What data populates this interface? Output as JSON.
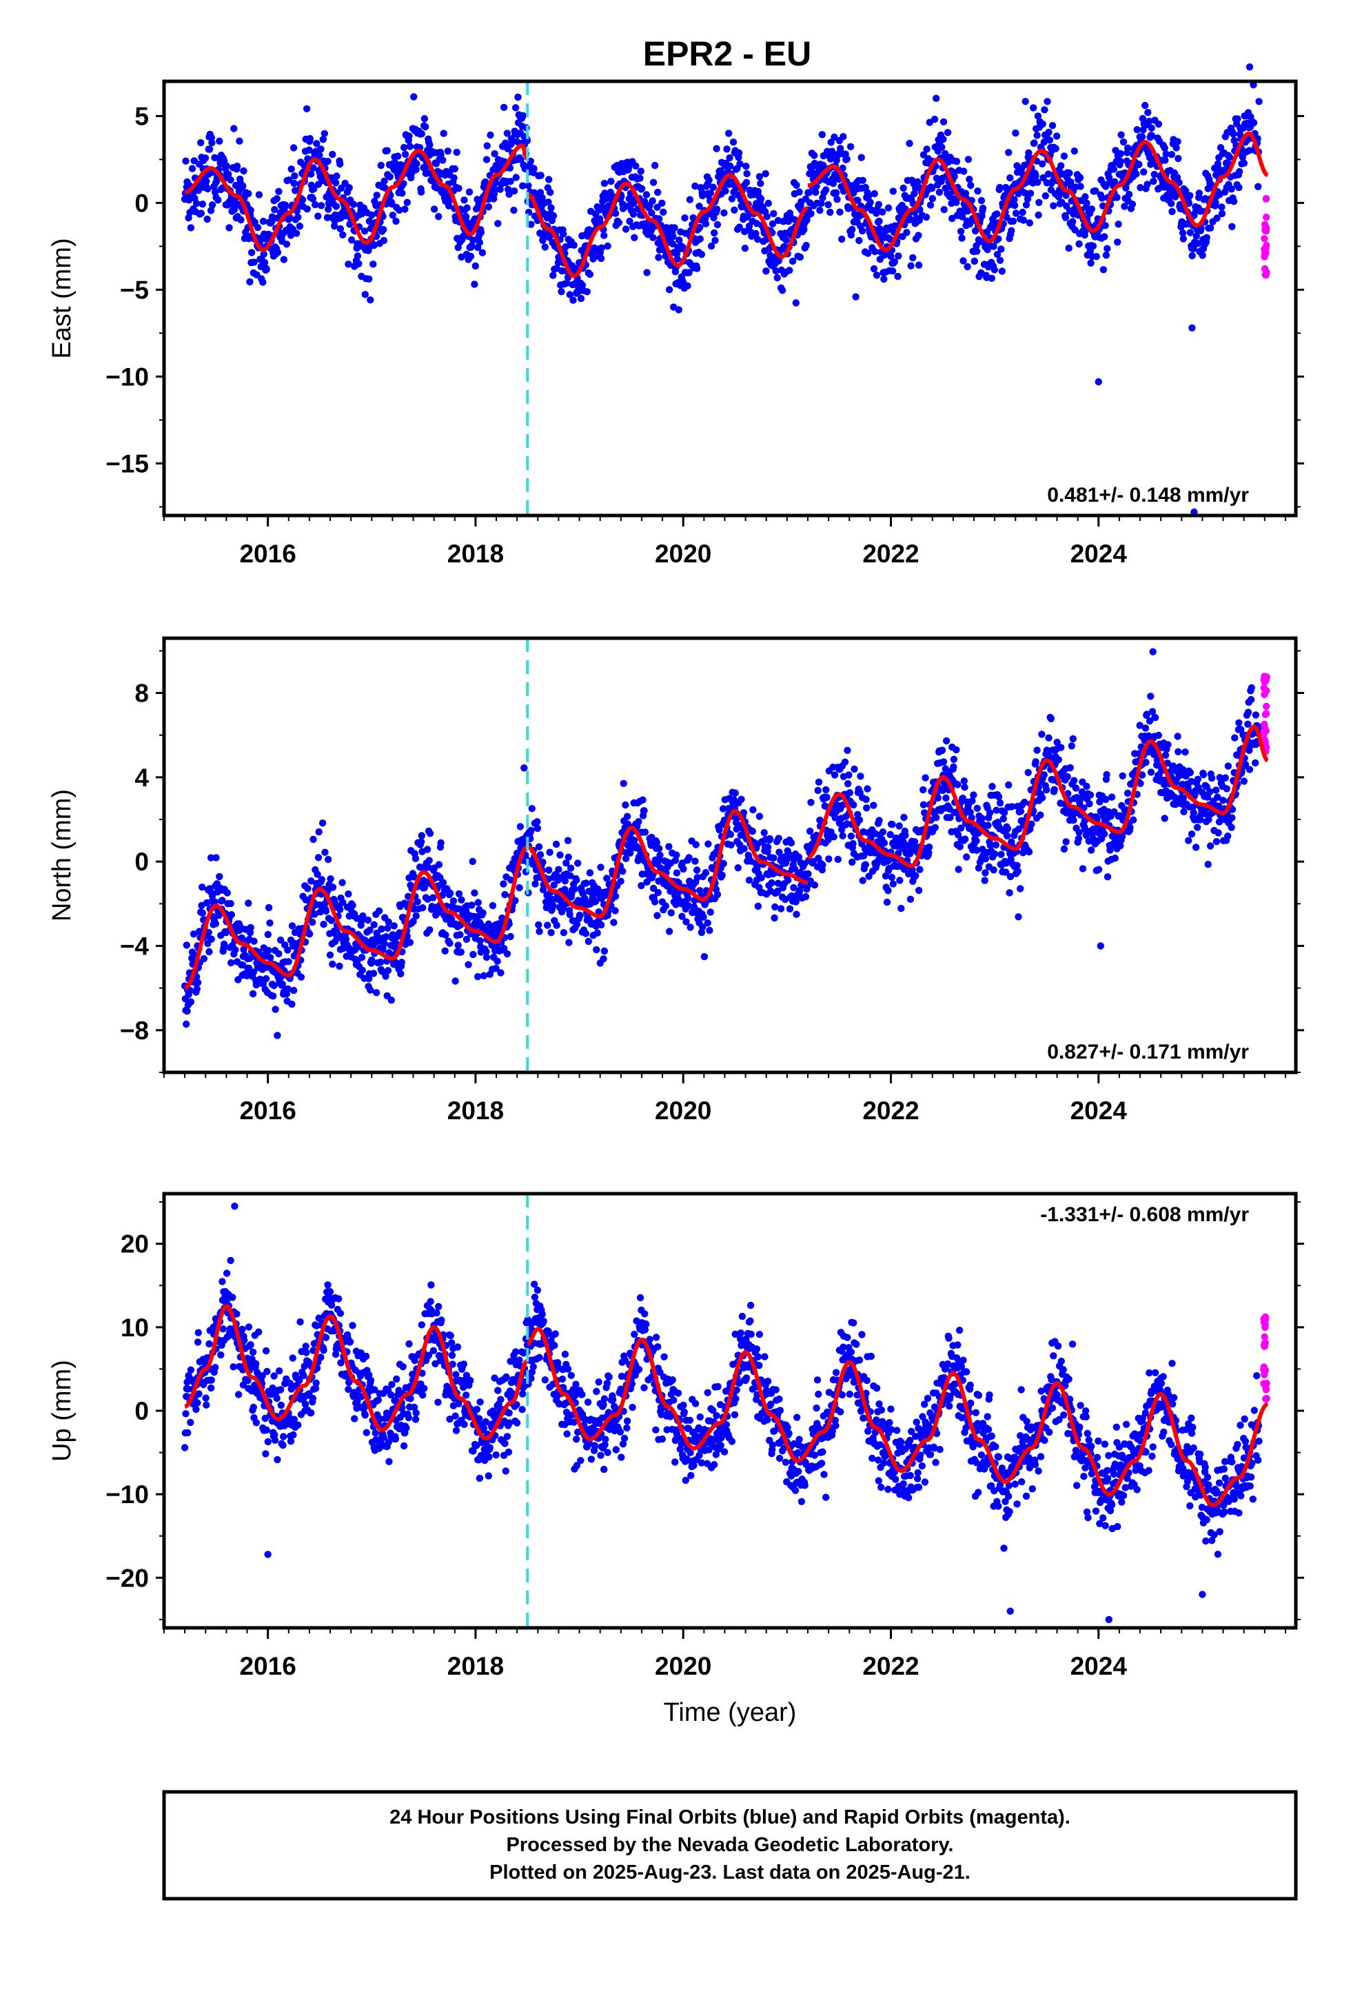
{
  "title": "EPR2 - EU",
  "colors": {
    "final": "#0000ff",
    "rapid": "#ff00ff",
    "model": "#ff0000",
    "event": "#33dddd"
  },
  "chart_data": [
    {
      "type": "scatter",
      "panel": "east",
      "ylabel": "East (mm)",
      "xlabel": "",
      "ylim": [
        -18,
        7
      ],
      "yticks": [
        5,
        0,
        -5,
        -10,
        -15
      ],
      "xlim": [
        2015.0,
        2025.9
      ],
      "xticks": [
        2016,
        2018,
        2020,
        2022,
        2024
      ],
      "rate_label": "0.481+/- 0.148 mm/yr",
      "rate_position": "bottom-right",
      "event_line_x": 2018.5,
      "data_start": 2015.2,
      "data_end": 2025.63,
      "rapid_start": 2025.55,
      "model_segments": [
        {
          "x": [
            2015.2,
            2015.45,
            2015.7,
            2015.95,
            2016.2,
            2016.45,
            2016.7,
            2016.95,
            2017.2,
            2017.45,
            2017.7,
            2017.95,
            2018.2,
            2018.45,
            2018.5
          ],
          "y": [
            0.6,
            2.0,
            0.4,
            -2.7,
            -0.6,
            2.5,
            0.2,
            -2.3,
            0.9,
            3.0,
            1.0,
            -1.8,
            1.6,
            3.3,
            2.5
          ]
        },
        {
          "x": [
            2018.5,
            2018.7,
            2018.95,
            2019.2,
            2019.45,
            2019.7,
            2019.95,
            2020.2,
            2020.45,
            2020.7,
            2020.95,
            2021.2
          ],
          "y": [
            0.5,
            -1.5,
            -4.2,
            -1.4,
            1.1,
            -1.0,
            -3.6,
            -0.5,
            1.6,
            -0.6,
            -3.1,
            -0.3
          ]
        },
        {
          "x": [
            2021.2,
            2021.45,
            2021.7,
            2021.95,
            2022.2,
            2022.45,
            2022.7,
            2022.95,
            2023.2,
            2023.45,
            2023.7,
            2023.95,
            2024.2,
            2024.45,
            2024.7,
            2024.95,
            2025.2,
            2025.45,
            2025.63
          ],
          "y": [
            1.0,
            2.1,
            -0.4,
            -2.7,
            -0.4,
            2.5,
            0.2,
            -2.2,
            0.8,
            3.0,
            0.7,
            -1.6,
            1.0,
            3.5,
            1.2,
            -1.3,
            1.5,
            4.0,
            1.6
          ]
        }
      ],
      "outliers": [
        [
          2020.0,
          -4.6
        ],
        [
          2024.0,
          -10.3
        ],
        [
          2024.9,
          -7.2
        ],
        [
          2024.92,
          -17.8
        ]
      ]
    },
    {
      "type": "scatter",
      "panel": "north",
      "ylabel": "North (mm)",
      "xlabel": "",
      "ylim": [
        -10,
        10.6
      ],
      "yticks": [
        8,
        4,
        0,
        -4,
        -8
      ],
      "xlim": [
        2015.0,
        2025.9
      ],
      "xticks": [
        2016,
        2018,
        2020,
        2022,
        2024
      ],
      "rate_label": "0.827+/- 0.171 mm/yr",
      "rate_position": "bottom-right",
      "event_line_x": 2018.5,
      "data_start": 2015.2,
      "data_end": 2025.63,
      "rapid_start": 2025.55,
      "model_segments": [
        {
          "x": [
            2015.2,
            2015.5,
            2015.75,
            2016.0,
            2016.2,
            2016.5,
            2016.75,
            2017.0,
            2017.2,
            2017.5,
            2017.75,
            2018.0,
            2018.2,
            2018.5
          ],
          "y": [
            -6.0,
            -2.1,
            -3.9,
            -4.8,
            -5.4,
            -1.3,
            -3.3,
            -4.2,
            -4.6,
            -0.5,
            -2.4,
            -3.3,
            -3.8,
            0.7
          ]
        },
        {
          "x": [
            2018.5,
            2018.75,
            2019.0,
            2019.2,
            2019.5,
            2019.75,
            2020.0,
            2020.2,
            2020.5,
            2020.75,
            2021.0,
            2021.2
          ],
          "y": [
            0.7,
            -1.4,
            -2.2,
            -2.6,
            1.6,
            -0.5,
            -1.3,
            -1.8,
            2.4,
            0.0,
            -0.6,
            -1.0
          ]
        },
        {
          "x": [
            2021.2,
            2021.5,
            2021.75,
            2022.0,
            2022.2,
            2022.5,
            2022.75,
            2023.0,
            2023.2,
            2023.5,
            2023.75,
            2024.0,
            2024.2,
            2024.5,
            2024.75,
            2025.0,
            2025.2,
            2025.5,
            2025.63
          ],
          "y": [
            0.2,
            3.2,
            1.0,
            0.3,
            -0.2,
            4.0,
            1.9,
            1.1,
            0.6,
            4.8,
            2.6,
            1.8,
            1.4,
            5.7,
            3.5,
            2.7,
            2.3,
            6.4,
            4.8
          ]
        }
      ],
      "outliers": [
        [
          2024.02,
          -4.0
        ]
      ]
    },
    {
      "type": "scatter",
      "panel": "up",
      "ylabel": "Up (mm)",
      "xlabel": "Time (year)",
      "ylim": [
        -26,
        26
      ],
      "yticks": [
        20,
        10,
        0,
        -10,
        -20
      ],
      "xlim": [
        2015.0,
        2025.9
      ],
      "xticks": [
        2016,
        2018,
        2020,
        2022,
        2024
      ],
      "rate_label": "-1.331+/- 0.608 mm/yr",
      "rate_position": "top-right",
      "event_line_x": 2018.5,
      "data_start": 2015.2,
      "data_end": 2025.63,
      "rapid_start": 2025.55,
      "model_segments": [
        {
          "x": [
            2015.2,
            2015.4,
            2015.6,
            2015.85,
            2016.1,
            2016.35,
            2016.6,
            2016.85,
            2017.1,
            2017.35,
            2017.6,
            2017.85,
            2018.1,
            2018.35,
            2018.5
          ],
          "y": [
            0.5,
            5.0,
            12.5,
            4.0,
            -1.0,
            3.0,
            11.3,
            3.5,
            -2.3,
            2.0,
            10.0,
            1.5,
            -3.3,
            1.0,
            6.0
          ]
        },
        {
          "x": [
            2018.5,
            2018.6,
            2018.85,
            2019.1,
            2019.35,
            2019.6,
            2019.85,
            2020.1,
            2020.35,
            2020.6,
            2020.85,
            2021.1,
            2021.35,
            2021.6,
            2021.85,
            2022.1,
            2022.35,
            2022.6,
            2022.85,
            2023.1,
            2023.35,
            2023.6,
            2023.85,
            2024.1,
            2024.35,
            2024.6,
            2024.85,
            2025.1,
            2025.35,
            2025.63
          ],
          "y": [
            8.0,
            9.8,
            2.0,
            -3.4,
            -0.5,
            8.5,
            0.5,
            -4.5,
            -1.5,
            7.0,
            -0.5,
            -6.0,
            -2.5,
            5.8,
            -2.0,
            -7.2,
            -3.5,
            4.5,
            -3.5,
            -8.5,
            -4.5,
            3.3,
            -4.5,
            -10.0,
            -6.0,
            2.0,
            -6.0,
            -11.3,
            -8.0,
            0.8
          ]
        }
      ],
      "outliers": [
        [
          2015.68,
          24.5
        ],
        [
          2016.0,
          -17.2
        ],
        [
          2023.15,
          -24.0
        ],
        [
          2024.1,
          -25.0
        ],
        [
          2025.0,
          -22.0
        ]
      ]
    }
  ],
  "caption": {
    "line1": "24 Hour Positions Using Final Orbits (blue) and Rapid Orbits (magenta).",
    "line2": "Processed by the Nevada Geodetic Laboratory.",
    "line3": "Plotted on 2025-Aug-23. Last data on 2025-Aug-21."
  }
}
